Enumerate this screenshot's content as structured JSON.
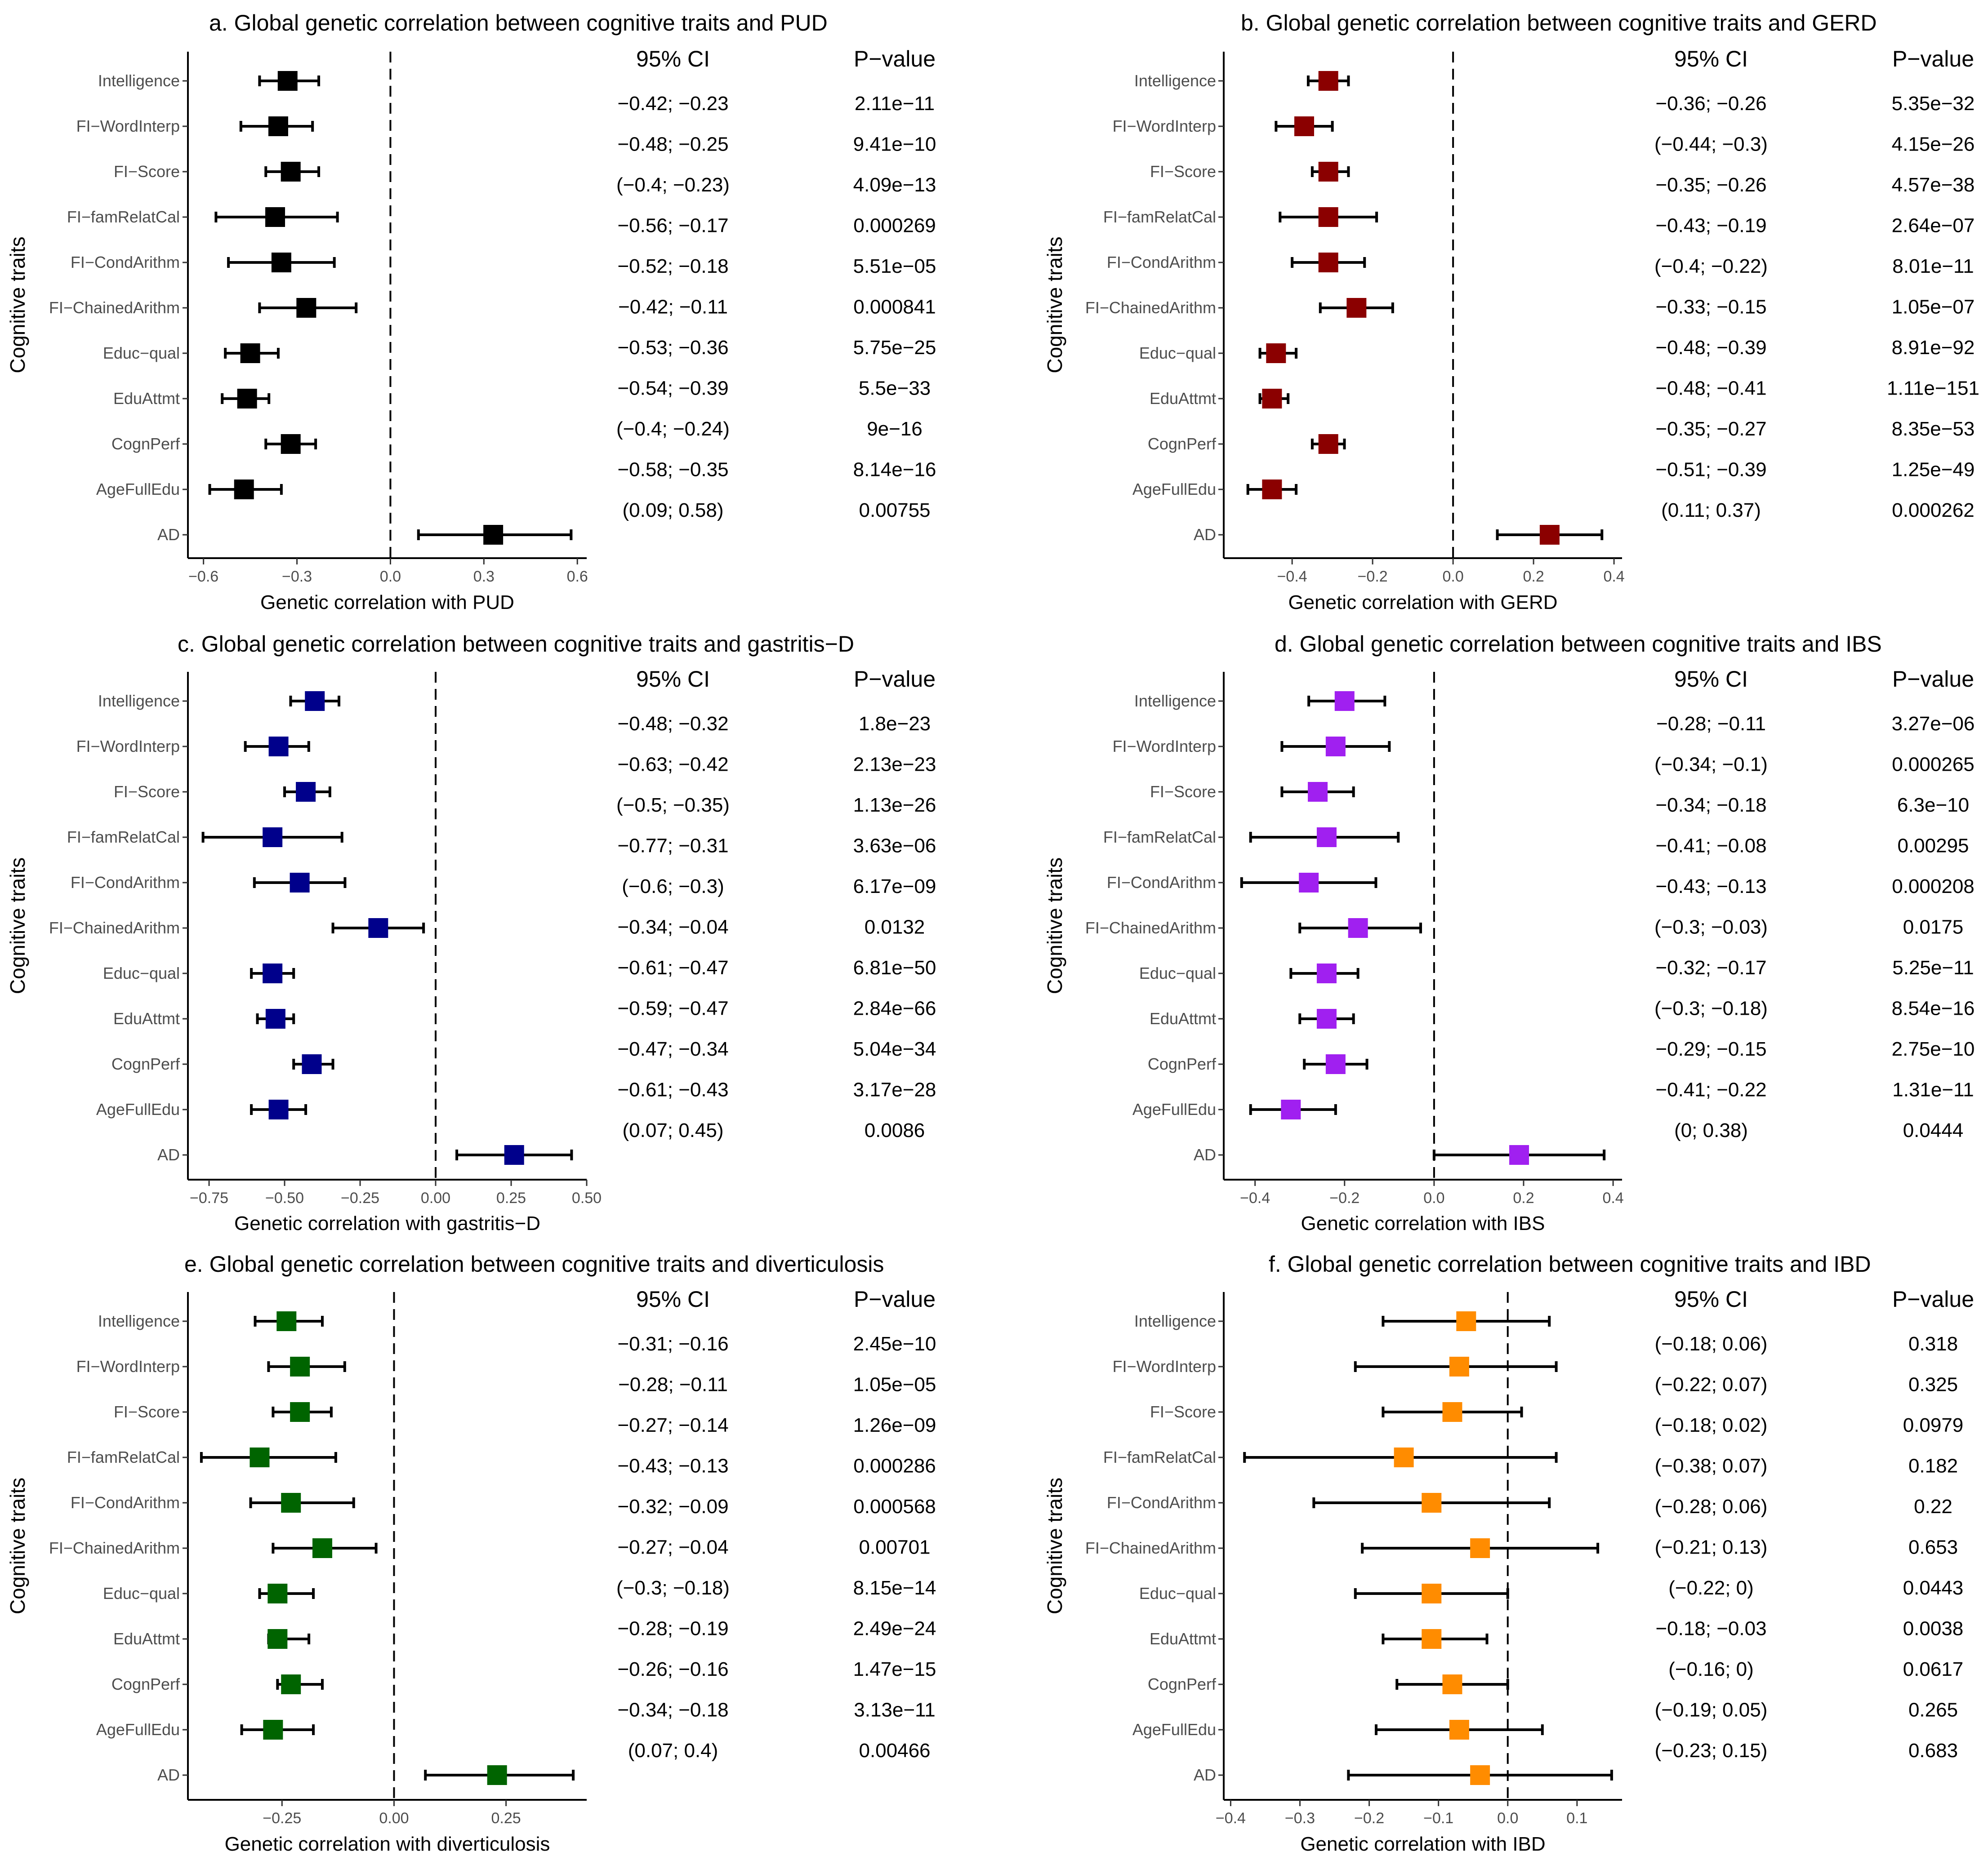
{
  "chart_data": [
    {
      "type": "forest",
      "id": "a",
      "title": "a. Global genetic correlation between cognitive traits and PUD",
      "xlabel": "Genetic correlation with PUD",
      "ylabel": "Cognitive traits",
      "color": "#000000",
      "xlim": [
        -0.65,
        0.63
      ],
      "xticks": [
        -0.6,
        -0.3,
        0.0,
        0.3,
        0.6
      ],
      "xtick_labels": [
        "−0.6",
        "−0.3",
        "0.0",
        "0.3",
        "0.6"
      ],
      "col_headers": [
        "95% CI",
        "P−value"
      ],
      "rows": [
        {
          "trait": "Intelligence",
          "rg": -0.33,
          "lo": -0.42,
          "hi": -0.23,
          "ci": "−0.42; −0.23",
          "p": "2.11e−11"
        },
        {
          "trait": "FI−WordInterp",
          "rg": -0.36,
          "lo": -0.48,
          "hi": -0.25,
          "ci": "−0.48; −0.25",
          "p": "9.41e−10"
        },
        {
          "trait": "FI−Score",
          "rg": -0.32,
          "lo": -0.4,
          "hi": -0.23,
          "ci": "(−0.4; −0.23)",
          "p": "4.09e−13"
        },
        {
          "trait": "FI−famRelatCal",
          "rg": -0.37,
          "lo": -0.56,
          "hi": -0.17,
          "ci": "−0.56; −0.17",
          "p": "0.000269"
        },
        {
          "trait": "FI−CondArithm",
          "rg": -0.35,
          "lo": -0.52,
          "hi": -0.18,
          "ci": "−0.52; −0.18",
          "p": "5.51e−05"
        },
        {
          "trait": "FI−ChainedArithm",
          "rg": -0.27,
          "lo": -0.42,
          "hi": -0.11,
          "ci": "−0.42; −0.11",
          "p": "0.000841"
        },
        {
          "trait": "Educ−qual",
          "rg": -0.45,
          "lo": -0.53,
          "hi": -0.36,
          "ci": "−0.53; −0.36",
          "p": "5.75e−25"
        },
        {
          "trait": "EduAttmt",
          "rg": -0.46,
          "lo": -0.54,
          "hi": -0.39,
          "ci": "−0.54; −0.39",
          "p": "5.5e−33"
        },
        {
          "trait": "CognPerf",
          "rg": -0.32,
          "lo": -0.4,
          "hi": -0.24,
          "ci": "(−0.4; −0.24)",
          "p": "9e−16"
        },
        {
          "trait": "AgeFullEdu",
          "rg": -0.47,
          "lo": -0.58,
          "hi": -0.35,
          "ci": "−0.58; −0.35",
          "p": "8.14e−16"
        },
        {
          "trait": "AD",
          "rg": 0.33,
          "lo": 0.09,
          "hi": 0.58,
          "ci": "(0.09; 0.58)",
          "p": "0.00755"
        }
      ]
    },
    {
      "type": "forest",
      "id": "b",
      "title": "b. Global genetic correlation between cognitive traits and GERD",
      "xlabel": "Genetic correlation with GERD",
      "ylabel": "Cognitive traits",
      "color": "#8b0000",
      "xlim": [
        -0.57,
        0.42
      ],
      "xticks": [
        -0.4,
        -0.2,
        0.0,
        0.2,
        0.4
      ],
      "xtick_labels": [
        "−0.4",
        "−0.2",
        "0.0",
        "0.2",
        "0.4"
      ],
      "col_headers": [
        "95% CI",
        "P−value"
      ],
      "rows": [
        {
          "trait": "Intelligence",
          "rg": -0.31,
          "lo": -0.36,
          "hi": -0.26,
          "ci": "−0.36; −0.26",
          "p": "5.35e−32"
        },
        {
          "trait": "FI−WordInterp",
          "rg": -0.37,
          "lo": -0.44,
          "hi": -0.3,
          "ci": "(−0.44; −0.3)",
          "p": "4.15e−26"
        },
        {
          "trait": "FI−Score",
          "rg": -0.31,
          "lo": -0.35,
          "hi": -0.26,
          "ci": "−0.35; −0.26",
          "p": "4.57e−38"
        },
        {
          "trait": "FI−famRelatCal",
          "rg": -0.31,
          "lo": -0.43,
          "hi": -0.19,
          "ci": "−0.43; −0.19",
          "p": "2.64e−07"
        },
        {
          "trait": "FI−CondArithm",
          "rg": -0.31,
          "lo": -0.4,
          "hi": -0.22,
          "ci": "(−0.4; −0.22)",
          "p": "8.01e−11"
        },
        {
          "trait": "FI−ChainedArithm",
          "rg": -0.24,
          "lo": -0.33,
          "hi": -0.15,
          "ci": "−0.33; −0.15",
          "p": "1.05e−07"
        },
        {
          "trait": "Educ−qual",
          "rg": -0.44,
          "lo": -0.48,
          "hi": -0.39,
          "ci": "−0.48; −0.39",
          "p": "8.91e−92"
        },
        {
          "trait": "EduAttmt",
          "rg": -0.45,
          "lo": -0.48,
          "hi": -0.41,
          "ci": "−0.48; −0.41",
          "p": "1.11e−151"
        },
        {
          "trait": "CognPerf",
          "rg": -0.31,
          "lo": -0.35,
          "hi": -0.27,
          "ci": "−0.35; −0.27",
          "p": "8.35e−53"
        },
        {
          "trait": "AgeFullEdu",
          "rg": -0.45,
          "lo": -0.51,
          "hi": -0.39,
          "ci": "−0.51; −0.39",
          "p": "1.25e−49"
        },
        {
          "trait": "AD",
          "rg": 0.24,
          "lo": 0.11,
          "hi": 0.37,
          "ci": "(0.11; 0.37)",
          "p": "0.000262"
        }
      ]
    },
    {
      "type": "forest",
      "id": "c",
      "title": "c. Global genetic correlation between cognitive traits and gastritis−D",
      "xlabel": "Genetic correlation with gastritis−D",
      "ylabel": "Cognitive traits",
      "color": "#00008b",
      "xlim": [
        -0.82,
        0.5
      ],
      "xticks": [
        -0.75,
        -0.5,
        -0.25,
        0.0,
        0.25,
        0.5
      ],
      "xtick_labels": [
        "−0.75",
        "−0.50",
        "−0.25",
        "0.00",
        "0.25",
        "0.50"
      ],
      "col_headers": [
        "95% CI",
        "P−value"
      ],
      "rows": [
        {
          "trait": "Intelligence",
          "rg": -0.4,
          "lo": -0.48,
          "hi": -0.32,
          "ci": "−0.48; −0.32",
          "p": "1.8e−23"
        },
        {
          "trait": "FI−WordInterp",
          "rg": -0.52,
          "lo": -0.63,
          "hi": -0.42,
          "ci": "−0.63; −0.42",
          "p": "2.13e−23"
        },
        {
          "trait": "FI−Score",
          "rg": -0.43,
          "lo": -0.5,
          "hi": -0.35,
          "ci": "(−0.5; −0.35)",
          "p": "1.13e−26"
        },
        {
          "trait": "FI−famRelatCal",
          "rg": -0.54,
          "lo": -0.77,
          "hi": -0.31,
          "ci": "−0.77; −0.31",
          "p": "3.63e−06"
        },
        {
          "trait": "FI−CondArithm",
          "rg": -0.45,
          "lo": -0.6,
          "hi": -0.3,
          "ci": "(−0.6; −0.3)",
          "p": "6.17e−09"
        },
        {
          "trait": "FI−ChainedArithm",
          "rg": -0.19,
          "lo": -0.34,
          "hi": -0.04,
          "ci": "−0.34; −0.04",
          "p": "0.0132"
        },
        {
          "trait": "Educ−qual",
          "rg": -0.54,
          "lo": -0.61,
          "hi": -0.47,
          "ci": "−0.61; −0.47",
          "p": "6.81e−50"
        },
        {
          "trait": "EduAttmt",
          "rg": -0.53,
          "lo": -0.59,
          "hi": -0.47,
          "ci": "−0.59; −0.47",
          "p": "2.84e−66"
        },
        {
          "trait": "CognPerf",
          "rg": -0.41,
          "lo": -0.47,
          "hi": -0.34,
          "ci": "−0.47; −0.34",
          "p": "5.04e−34"
        },
        {
          "trait": "AgeFullEdu",
          "rg": -0.52,
          "lo": -0.61,
          "hi": -0.43,
          "ci": "−0.61; −0.43",
          "p": "3.17e−28"
        },
        {
          "trait": "AD",
          "rg": 0.26,
          "lo": 0.07,
          "hi": 0.45,
          "ci": "(0.07; 0.45)",
          "p": "0.0086"
        }
      ]
    },
    {
      "type": "forest",
      "id": "d",
      "title": "d. Global genetic correlation between cognitive traits and IBS",
      "xlabel": "Genetic correlation with IBS",
      "ylabel": "Cognitive traits",
      "color": "#a020f0",
      "xlim": [
        -0.47,
        0.42
      ],
      "xticks": [
        -0.4,
        -0.2,
        0.0,
        0.2,
        0.4
      ],
      "xtick_labels": [
        "−0.4",
        "−0.2",
        "0.0",
        "0.2",
        "0.4"
      ],
      "col_headers": [
        "95% CI",
        "P−value"
      ],
      "rows": [
        {
          "trait": "Intelligence",
          "rg": -0.2,
          "lo": -0.28,
          "hi": -0.11,
          "ci": "−0.28; −0.11",
          "p": "3.27e−06"
        },
        {
          "trait": "FI−WordInterp",
          "rg": -0.22,
          "lo": -0.34,
          "hi": -0.1,
          "ci": "(−0.34; −0.1)",
          "p": "0.000265"
        },
        {
          "trait": "FI−Score",
          "rg": -0.26,
          "lo": -0.34,
          "hi": -0.18,
          "ci": "−0.34; −0.18",
          "p": "6.3e−10"
        },
        {
          "trait": "FI−famRelatCal",
          "rg": -0.24,
          "lo": -0.41,
          "hi": -0.08,
          "ci": "−0.41; −0.08",
          "p": "0.00295"
        },
        {
          "trait": "FI−CondArithm",
          "rg": -0.28,
          "lo": -0.43,
          "hi": -0.13,
          "ci": "−0.43; −0.13",
          "p": "0.000208"
        },
        {
          "trait": "FI−ChainedArithm",
          "rg": -0.17,
          "lo": -0.3,
          "hi": -0.03,
          "ci": "(−0.3; −0.03)",
          "p": "0.0175"
        },
        {
          "trait": "Educ−qual",
          "rg": -0.24,
          "lo": -0.32,
          "hi": -0.17,
          "ci": "−0.32; −0.17",
          "p": "5.25e−11"
        },
        {
          "trait": "EduAttmt",
          "rg": -0.24,
          "lo": -0.3,
          "hi": -0.18,
          "ci": "(−0.3; −0.18)",
          "p": "8.54e−16"
        },
        {
          "trait": "CognPerf",
          "rg": -0.22,
          "lo": -0.29,
          "hi": -0.15,
          "ci": "−0.29; −0.15",
          "p": "2.75e−10"
        },
        {
          "trait": "AgeFullEdu",
          "rg": -0.32,
          "lo": -0.41,
          "hi": -0.22,
          "ci": "−0.41; −0.22",
          "p": "1.31e−11"
        },
        {
          "trait": "AD",
          "rg": 0.19,
          "lo": 0.0,
          "hi": 0.38,
          "ci": "(0; 0.38)",
          "p": "0.0444"
        }
      ]
    },
    {
      "type": "forest",
      "id": "e",
      "title": "e. Global genetic correlation between cognitive traits and diverticulosis",
      "xlabel": "Genetic correlation with diverticulosis",
      "ylabel": "Cognitive traits",
      "color": "#006400",
      "xlim": [
        -0.46,
        0.43
      ],
      "xticks": [
        -0.25,
        0.0,
        0.25
      ],
      "xtick_labels": [
        "−0.25",
        "0.00",
        "0.25"
      ],
      "col_headers": [
        "95% CI",
        "P−value"
      ],
      "rows": [
        {
          "trait": "Intelligence",
          "rg": -0.24,
          "lo": -0.31,
          "hi": -0.16,
          "ci": "−0.31; −0.16",
          "p": "2.45e−10"
        },
        {
          "trait": "FI−WordInterp",
          "rg": -0.21,
          "lo": -0.28,
          "hi": -0.11,
          "ci": "−0.28; −0.11",
          "p": "1.05e−05"
        },
        {
          "trait": "FI−Score",
          "rg": -0.21,
          "lo": -0.27,
          "hi": -0.14,
          "ci": "−0.27; −0.14",
          "p": "1.26e−09"
        },
        {
          "trait": "FI−famRelatCal",
          "rg": -0.3,
          "lo": -0.43,
          "hi": -0.13,
          "ci": "−0.43; −0.13",
          "p": "0.000286"
        },
        {
          "trait": "FI−CondArithm",
          "rg": -0.23,
          "lo": -0.32,
          "hi": -0.09,
          "ci": "−0.32; −0.09",
          "p": "0.000568"
        },
        {
          "trait": "FI−ChainedArithm",
          "rg": -0.16,
          "lo": -0.27,
          "hi": -0.04,
          "ci": "−0.27; −0.04",
          "p": "0.00701"
        },
        {
          "trait": "Educ−qual",
          "rg": -0.26,
          "lo": -0.3,
          "hi": -0.18,
          "ci": "(−0.3; −0.18)",
          "p": "8.15e−14"
        },
        {
          "trait": "EduAttmt",
          "rg": -0.26,
          "lo": -0.28,
          "hi": -0.19,
          "ci": "−0.28; −0.19",
          "p": "2.49e−24"
        },
        {
          "trait": "CognPerf",
          "rg": -0.23,
          "lo": -0.26,
          "hi": -0.16,
          "ci": "−0.26; −0.16",
          "p": "1.47e−15"
        },
        {
          "trait": "AgeFullEdu",
          "rg": -0.27,
          "lo": -0.34,
          "hi": -0.18,
          "ci": "−0.34; −0.18",
          "p": "3.13e−11"
        },
        {
          "trait": "AD",
          "rg": 0.23,
          "lo": 0.07,
          "hi": 0.4,
          "ci": "(0.07; 0.4)",
          "p": "0.00466"
        }
      ]
    },
    {
      "type": "forest",
      "id": "f",
      "title": "f. Global genetic correlation between cognitive traits and IBD",
      "xlabel": "Genetic correlation with IBD",
      "ylabel": "Cognitive traits",
      "color": "#ff8c00",
      "xlim": [
        -0.41,
        0.165
      ],
      "xticks": [
        -0.4,
        -0.3,
        -0.2,
        -0.1,
        0.0,
        0.1
      ],
      "xtick_labels": [
        "−0.4",
        "−0.3",
        "−0.2",
        "−0.1",
        "0.0",
        "0.1"
      ],
      "col_headers": [
        "95% CI",
        "P−value"
      ],
      "rows": [
        {
          "trait": "Intelligence",
          "rg": -0.06,
          "lo": -0.18,
          "hi": 0.06,
          "ci": "(−0.18; 0.06)",
          "p": "0.318"
        },
        {
          "trait": "FI−WordInterp",
          "rg": -0.07,
          "lo": -0.22,
          "hi": 0.07,
          "ci": "(−0.22; 0.07)",
          "p": "0.325"
        },
        {
          "trait": "FI−Score",
          "rg": -0.08,
          "lo": -0.18,
          "hi": 0.02,
          "ci": "(−0.18; 0.02)",
          "p": "0.0979"
        },
        {
          "trait": "FI−famRelatCal",
          "rg": -0.15,
          "lo": -0.38,
          "hi": 0.07,
          "ci": "(−0.38; 0.07)",
          "p": "0.182"
        },
        {
          "trait": "FI−CondArithm",
          "rg": -0.11,
          "lo": -0.28,
          "hi": 0.06,
          "ci": "(−0.28; 0.06)",
          "p": "0.22"
        },
        {
          "trait": "FI−ChainedArithm",
          "rg": -0.04,
          "lo": -0.21,
          "hi": 0.13,
          "ci": "(−0.21; 0.13)",
          "p": "0.653"
        },
        {
          "trait": "Educ−qual",
          "rg": -0.11,
          "lo": -0.22,
          "hi": 0.0,
          "ci": "(−0.22; 0)",
          "p": "0.0443"
        },
        {
          "trait": "EduAttmt",
          "rg": -0.11,
          "lo": -0.18,
          "hi": -0.03,
          "ci": "−0.18; −0.03",
          "p": "0.0038"
        },
        {
          "trait": "CognPerf",
          "rg": -0.08,
          "lo": -0.16,
          "hi": 0.0,
          "ci": "(−0.16; 0)",
          "p": "0.0617"
        },
        {
          "trait": "AgeFullEdu",
          "rg": -0.07,
          "lo": -0.19,
          "hi": 0.05,
          "ci": "(−0.19; 0.05)",
          "p": "0.265"
        },
        {
          "trait": "AD",
          "rg": -0.04,
          "lo": -0.23,
          "hi": 0.15,
          "ci": "(−0.23; 0.15)",
          "p": "0.683"
        }
      ]
    }
  ]
}
